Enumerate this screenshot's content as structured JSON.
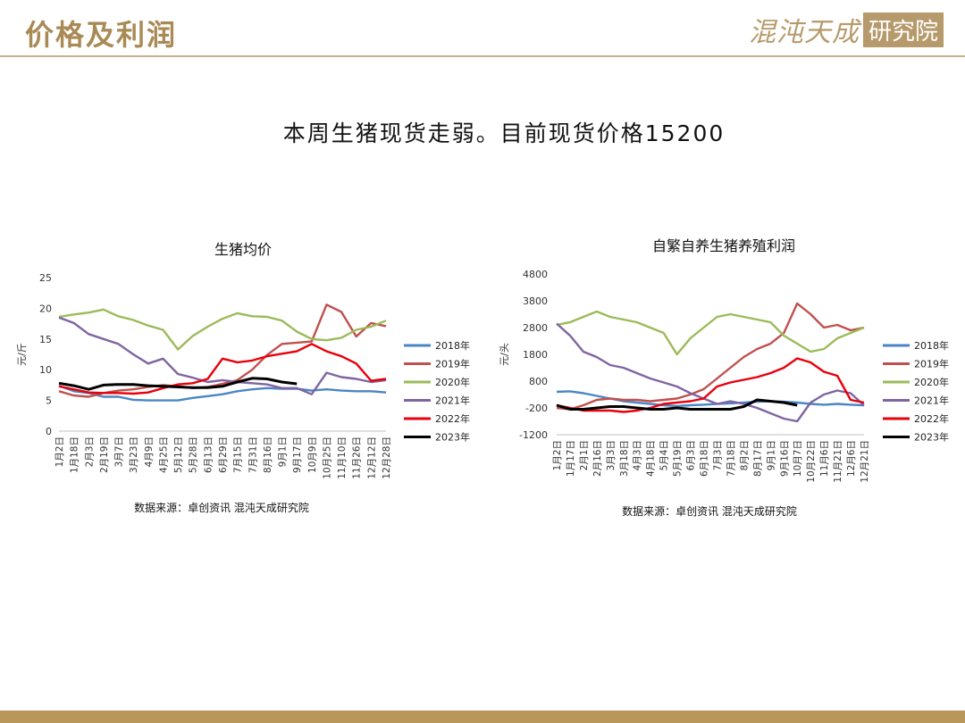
{
  "header": {
    "title": "价格及利润",
    "logo_text": "混沌天成",
    "logo_box": "研究院"
  },
  "headline": "本周生猪现货走弱。目前现货价格15200",
  "colors": {
    "2018年": "#4a86c5",
    "2019年": "#c0504d",
    "2020年": "#9bbb59",
    "2021年": "#8064a2",
    "2022年": "#e8000b",
    "2023年": "#000000",
    "accent": "#b9975b"
  },
  "chart_data": [
    {
      "type": "line",
      "title": "生猪均价",
      "ylabel": "元/斤",
      "ylim": [
        0,
        25
      ],
      "yticks": [
        0,
        5,
        10,
        15,
        20,
        25
      ],
      "xticks": [
        "1月2日",
        "1月18日",
        "2月3日",
        "2月19日",
        "3月7日",
        "3月23日",
        "4月9日",
        "4月25日",
        "5月12日",
        "5月28日",
        "6月13日",
        "6月29日",
        "7月15日",
        "7月31日",
        "8月16日",
        "9月1日",
        "9月17日",
        "10月9日",
        "10月25日",
        "11月10日",
        "11月26日",
        "12月12日",
        "12月28日"
      ],
      "legend_position": "right",
      "source": "数据来源：卓创资讯 混沌天成研究院",
      "series": [
        {
          "name": "2018年",
          "values": [
            7.4,
            6.5,
            6.2,
            5.6,
            5.6,
            5.1,
            5.0,
            5.0,
            5.0,
            5.4,
            5.7,
            6.0,
            6.5,
            6.8,
            7.0,
            6.9,
            6.9,
            6.6,
            6.8,
            6.6,
            6.5,
            6.5,
            6.3
          ]
        },
        {
          "name": "2019年",
          "values": [
            6.5,
            5.8,
            5.6,
            6.2,
            6.6,
            6.8,
            7.2,
            7.5,
            7.3,
            7.0,
            7.2,
            7.7,
            8.3,
            10.0,
            12.4,
            14.2,
            14.4,
            14.6,
            20.6,
            19.4,
            15.4,
            17.6,
            17.1
          ]
        },
        {
          "name": "2020年",
          "values": [
            18.6,
            19.0,
            19.3,
            19.8,
            18.7,
            18.1,
            17.2,
            16.5,
            13.3,
            15.5,
            17.0,
            18.3,
            19.2,
            18.7,
            18.6,
            18.0,
            16.2,
            15.0,
            14.8,
            15.2,
            16.5,
            17.0,
            18.0
          ]
        },
        {
          "name": "2021年",
          "values": [
            18.5,
            17.6,
            15.8,
            15.0,
            14.2,
            12.5,
            11.0,
            11.8,
            9.3,
            8.7,
            8.0,
            8.3,
            8.0,
            7.8,
            7.6,
            7.0,
            7.0,
            6.0,
            9.5,
            8.8,
            8.5,
            8.0,
            8.3
          ]
        },
        {
          "name": "2022年",
          "values": [
            7.3,
            6.8,
            6.3,
            6.2,
            6.2,
            6.1,
            6.3,
            7.0,
            7.6,
            7.8,
            8.5,
            11.8,
            11.2,
            11.5,
            12.2,
            12.6,
            13.0,
            14.2,
            13.0,
            12.2,
            11.0,
            8.2,
            8.5
          ]
        },
        {
          "name": "2023年",
          "values": [
            7.8,
            7.4,
            6.8,
            7.5,
            7.6,
            7.6,
            7.4,
            7.3,
            7.2,
            7.1,
            7.1,
            7.3,
            8.0,
            8.6,
            8.5,
            8.0,
            7.7
          ]
        }
      ]
    },
    {
      "type": "line",
      "title": "自繁自养生猪养殖利润",
      "ylabel": "元/头",
      "ylim": [
        -1200,
        4800
      ],
      "yticks": [
        -1200,
        -200,
        800,
        1800,
        2800,
        3800,
        4800
      ],
      "xticks": [
        "1月2日",
        "1月17日",
        "2月1日",
        "2月16日",
        "3月3日",
        "3月18日",
        "4月3日",
        "4月18日",
        "5月4日",
        "5月19日",
        "6月3日",
        "6月18日",
        "7月3日",
        "7月18日",
        "8月2日",
        "8月17日",
        "9月1日",
        "9月16日",
        "10月7日",
        "10月22日",
        "11月6日",
        "11月21日",
        "12月6日",
        "12月21日"
      ],
      "legend_position": "right",
      "source": "数据来源：卓创资讯 混沌天成研究院",
      "series": [
        {
          "name": "2018年",
          "values": [
            400,
            420,
            350,
            250,
            150,
            50,
            0,
            -50,
            -100,
            -130,
            -100,
            -80,
            -50,
            -30,
            0,
            30,
            50,
            30,
            0,
            -50,
            -80,
            -50,
            -80,
            -100
          ]
        },
        {
          "name": "2019年",
          "values": [
            -200,
            -250,
            -100,
            100,
            150,
            100,
            100,
            50,
            100,
            150,
            300,
            500,
            900,
            1300,
            1700,
            2000,
            2200,
            2600,
            3700,
            3300,
            2800,
            2900,
            2700,
            2800
          ]
        },
        {
          "name": "2020年",
          "values": [
            2900,
            3000,
            3200,
            3400,
            3200,
            3100,
            3000,
            2800,
            2600,
            1800,
            2400,
            2800,
            3200,
            3300,
            3200,
            3100,
            3000,
            2500,
            2200,
            1900,
            2000,
            2400,
            2600,
            2800
          ]
        },
        {
          "name": "2021年",
          "values": [
            2950,
            2500,
            1900,
            1700,
            1400,
            1300,
            1100,
            900,
            750,
            600,
            350,
            150,
            -50,
            50,
            -50,
            -200,
            -400,
            -600,
            -700,
            0,
            300,
            450,
            350,
            -100
          ]
        },
        {
          "name": "2022年",
          "values": [
            -100,
            -200,
            -300,
            -300,
            -300,
            -350,
            -300,
            -200,
            -50,
            0,
            50,
            150,
            600,
            750,
            850,
            950,
            1100,
            1300,
            1650,
            1500,
            1150,
            1000,
            100,
            0
          ]
        },
        {
          "name": "2023年",
          "values": [
            -100,
            -250,
            -250,
            -200,
            -150,
            -150,
            -200,
            -250,
            -250,
            -200,
            -250,
            -250,
            -250,
            -250,
            -150,
            100,
            50,
            0,
            -100
          ]
        }
      ]
    }
  ]
}
